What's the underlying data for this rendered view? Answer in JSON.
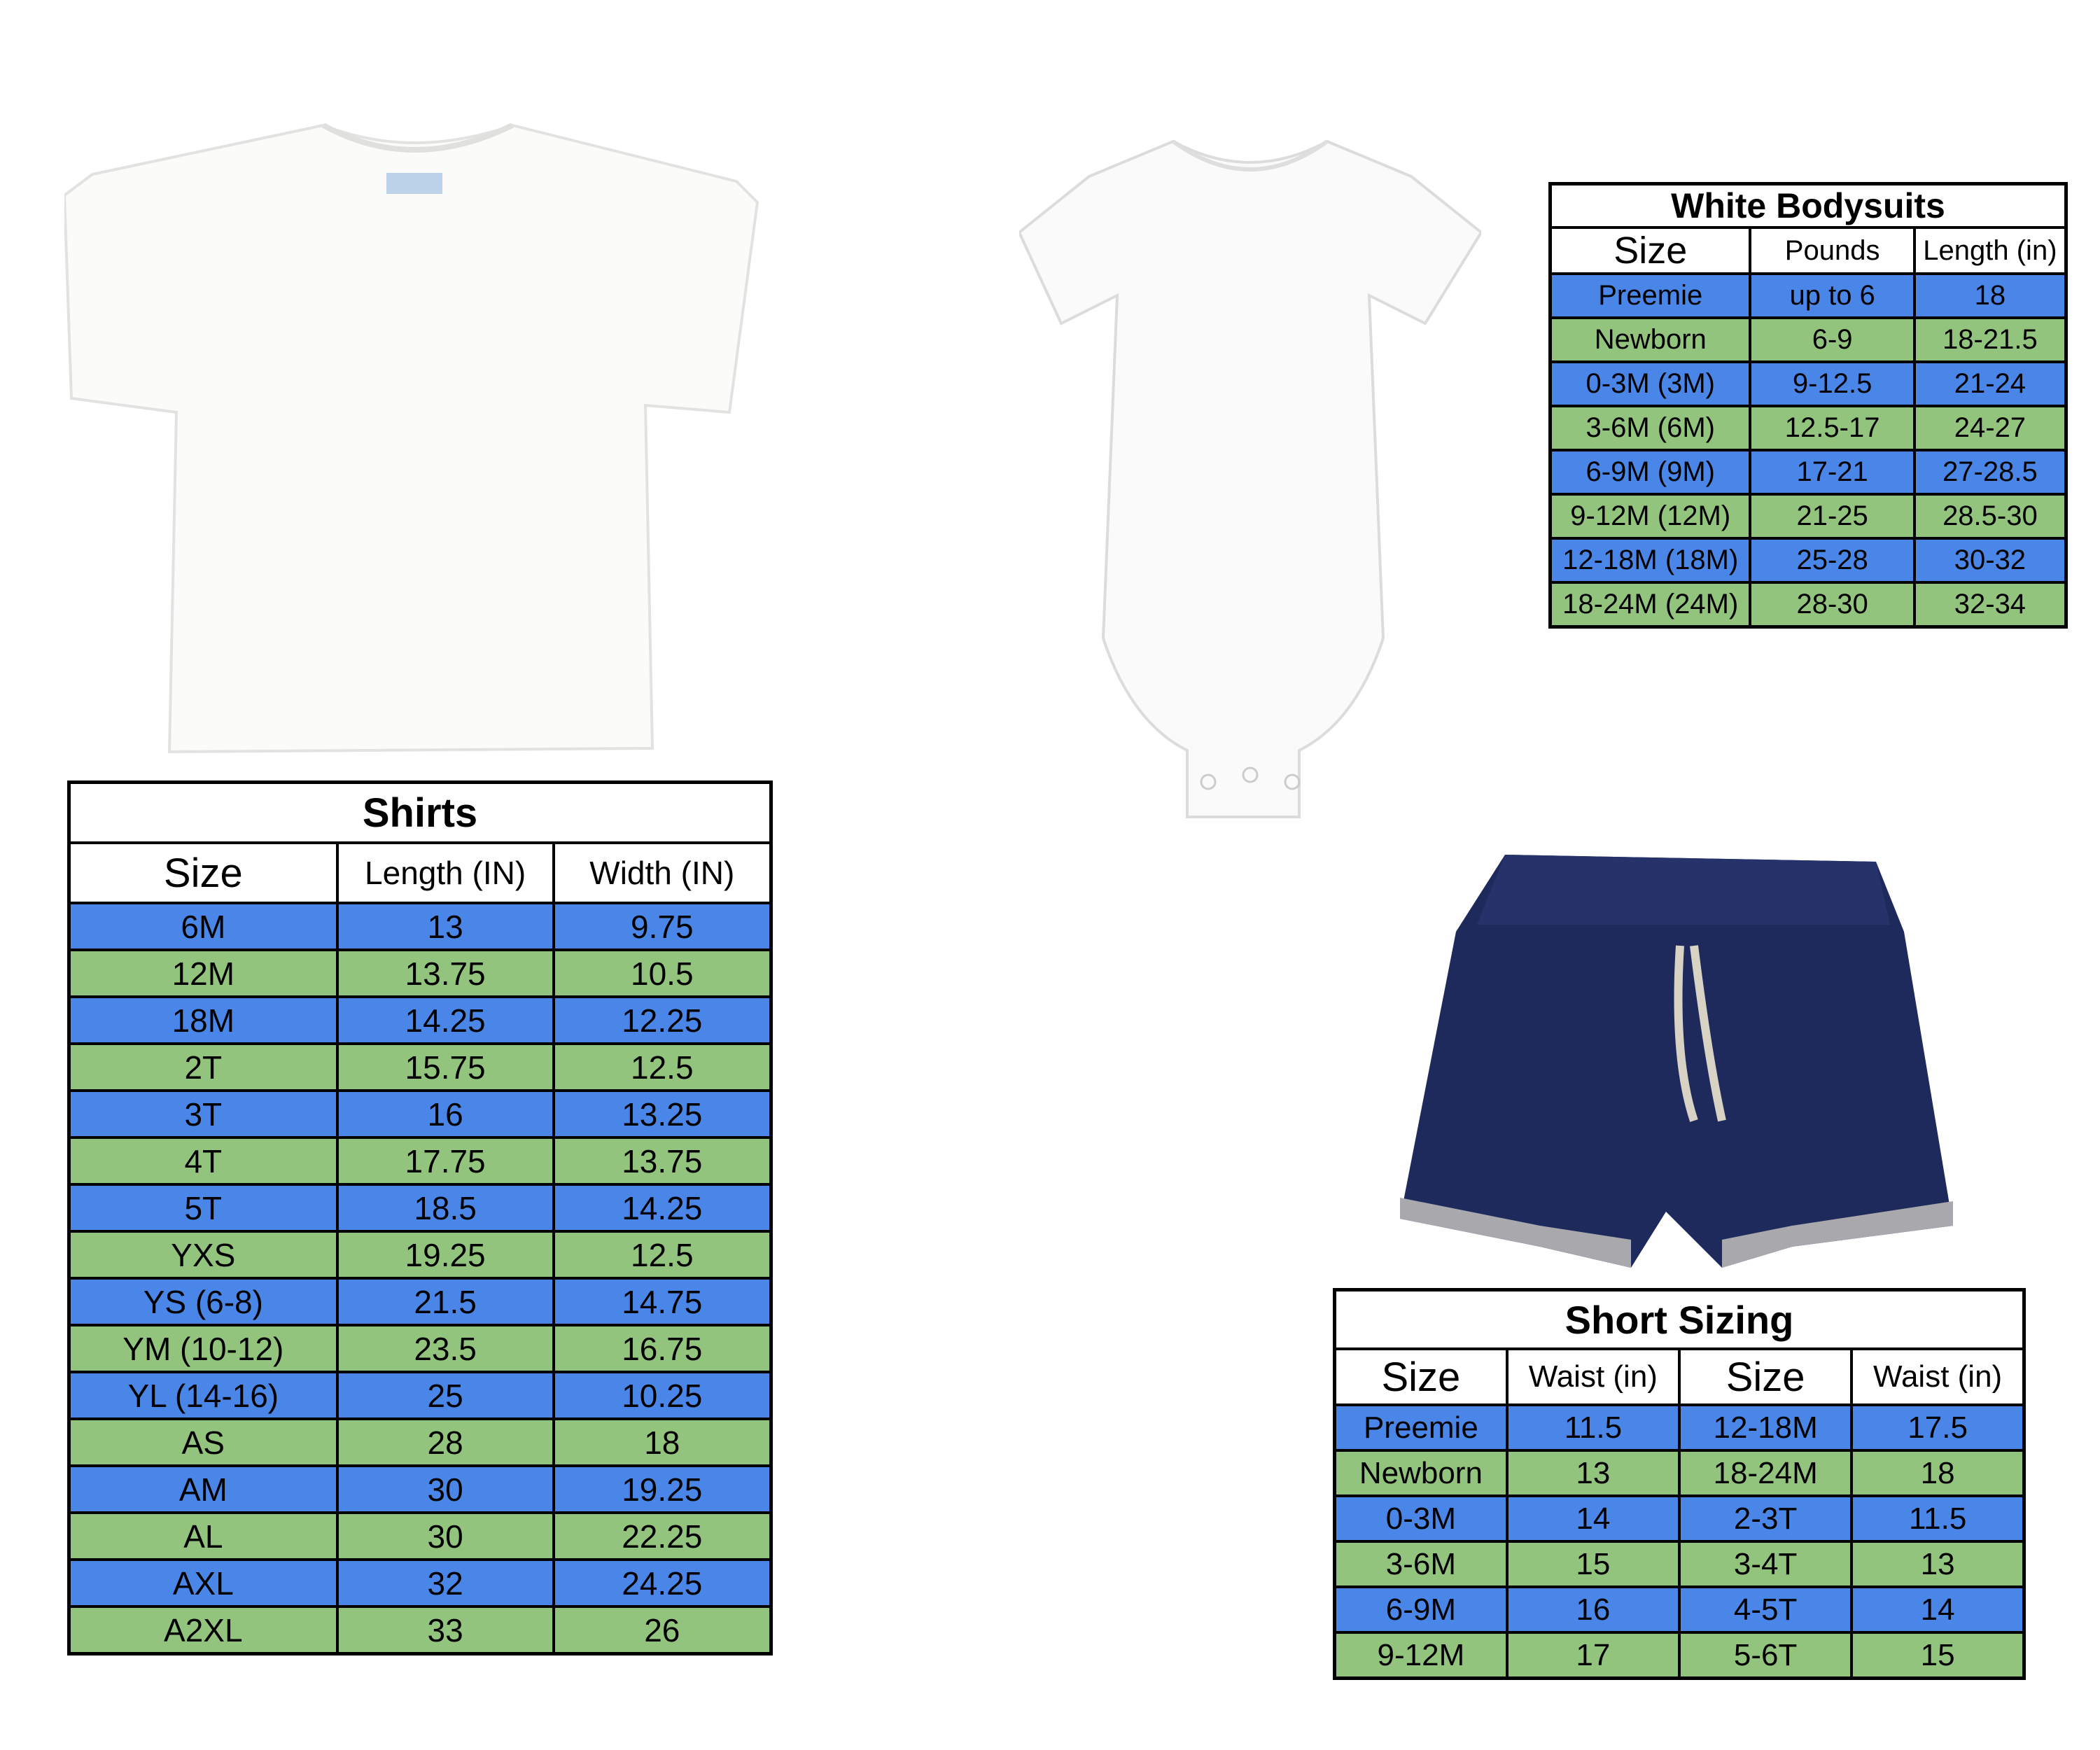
{
  "colors": {
    "row_blue": "#4a86e8",
    "row_green": "#93c47d",
    "border": "#000000",
    "shorts_denim": "#1f2a5c"
  },
  "images": [
    "white-tshirt",
    "white-bodysuit",
    "denim-shorts"
  ],
  "shirts": {
    "title": "Shirts",
    "headers": [
      "Size",
      "Length (IN)",
      "Width (IN)"
    ],
    "rows": [
      [
        "6M",
        "13",
        "9.75"
      ],
      [
        "12M",
        "13.75",
        "10.5"
      ],
      [
        "18M",
        "14.25",
        "12.25"
      ],
      [
        "2T",
        "15.75",
        "12.5"
      ],
      [
        "3T",
        "16",
        "13.25"
      ],
      [
        "4T",
        "17.75",
        "13.75"
      ],
      [
        "5T",
        "18.5",
        "14.25"
      ],
      [
        "YXS",
        "19.25",
        "12.5"
      ],
      [
        "YS (6-8)",
        "21.5",
        "14.75"
      ],
      [
        "YM (10-12)",
        "23.5",
        "16.75"
      ],
      [
        "YL (14-16)",
        "25",
        "10.25"
      ],
      [
        "AS",
        "28",
        "18"
      ],
      [
        "AM",
        "30",
        "19.25"
      ],
      [
        "AL",
        "30",
        "22.25"
      ],
      [
        "AXL",
        "32",
        "24.25"
      ],
      [
        "A2XL",
        "33",
        "26"
      ]
    ]
  },
  "bodysuits": {
    "title": "White Bodysuits",
    "headers": [
      "Size",
      "Pounds",
      "Length (in)"
    ],
    "rows": [
      [
        "Preemie",
        "up to 6",
        "18"
      ],
      [
        "Newborn",
        "6-9",
        "18-21.5"
      ],
      [
        "0-3M (3M)",
        "9-12.5",
        "21-24"
      ],
      [
        "3-6M (6M)",
        "12.5-17",
        "24-27"
      ],
      [
        "6-9M (9M)",
        "17-21",
        "27-28.5"
      ],
      [
        "9-12M (12M)",
        "21-25",
        "28.5-30"
      ],
      [
        "12-18M (18M)",
        "25-28",
        "30-32"
      ],
      [
        "18-24M (24M)",
        "28-30",
        "32-34"
      ]
    ]
  },
  "shorts": {
    "title": "Short Sizing",
    "headers": [
      "Size",
      "Waist (in)",
      "Size",
      "Waist (in)"
    ],
    "rows": [
      [
        "Preemie",
        "11.5",
        "12-18M",
        "17.5"
      ],
      [
        "Newborn",
        "13",
        "18-24M",
        "18"
      ],
      [
        "0-3M",
        "14",
        "2-3T",
        "11.5"
      ],
      [
        "3-6M",
        "15",
        "3-4T",
        "13"
      ],
      [
        "6-9M",
        "16",
        "4-5T",
        "14"
      ],
      [
        "9-12M",
        "17",
        "5-6T",
        "15"
      ]
    ]
  }
}
